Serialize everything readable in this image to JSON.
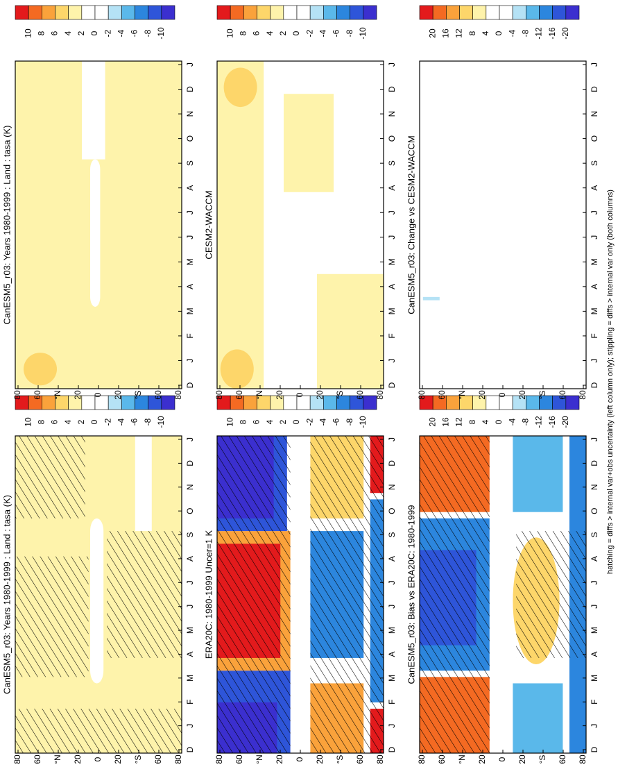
{
  "footnote": "hatching = diffs > internal var+obs uncertainty (left column only); stippling = diffs > internal var only (both columns)",
  "months": [
    "D",
    "J",
    "F",
    "M",
    "A",
    "M",
    "J",
    "J",
    "A",
    "S",
    "O",
    "N",
    "D",
    "J"
  ],
  "latitude_labels": [
    "80",
    "60",
    "°N",
    "20",
    "0",
    "20",
    "°S",
    "60",
    "80"
  ],
  "colormap": [
    "#e31a1c",
    "#f46a22",
    "#faa23b",
    "#fdd66a",
    "#fef3ab",
    "#ffffff",
    "#ffffff",
    "#b5e2f5",
    "#5ab8ea",
    "#2c86de",
    "#2e55d9",
    "#3b2fcf"
  ],
  "panels": [
    {
      "title": "CanESM5_r03: Years 1980-1999 : Land : tasa (K)",
      "colorbar_labels": [
        "10",
        "8",
        "6",
        "4",
        "2",
        "0",
        "-2",
        "-4",
        "-6",
        "-8",
        "-10"
      ]
    },
    {
      "title": "CanESM5_r03: Years 1980-1999 : Land : tasa (K)",
      "colorbar_labels": [
        "10",
        "8",
        "6",
        "4",
        "2",
        "0",
        "-2",
        "-4",
        "-6",
        "-8",
        "-10"
      ]
    },
    {
      "title": "ERA20C: 1980-1999 Uncer=1 K",
      "colorbar_labels": [
        "10",
        "8",
        "6",
        "4",
        "2",
        "0",
        "-2",
        "-4",
        "-6",
        "-8",
        "-10"
      ]
    },
    {
      "title": "CESM2-WACCM",
      "colorbar_labels": [
        "10",
        "8",
        "6",
        "4",
        "2",
        "0",
        "-2",
        "-4",
        "-6",
        "-8",
        "-10"
      ]
    },
    {
      "title": "CanESM5_r03: Bias vs ERA20C: 1980-1999",
      "colorbar_labels": [
        "20",
        "16",
        "12",
        "8",
        "4",
        "0",
        "-4",
        "-8",
        "-12",
        "-16",
        "-20"
      ]
    },
    {
      "title": "CanESM5_r03: Change vs CESM2-WACCM",
      "colorbar_labels": [
        "20",
        "16",
        "12",
        "8",
        "4",
        "0",
        "-4",
        "-8",
        "-12",
        "-16",
        "-20"
      ]
    }
  ]
}
